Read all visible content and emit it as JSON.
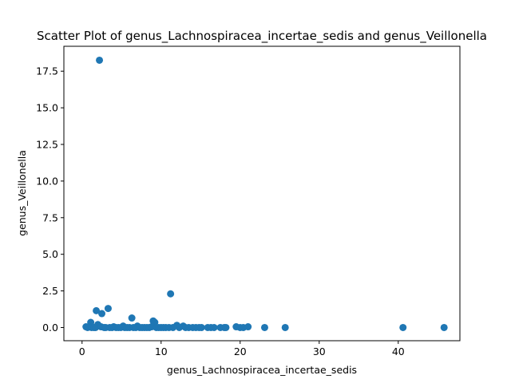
{
  "chart_data": {
    "type": "scatter",
    "title": "Scatter Plot of genus_Lachnospiracea_incertae_sedis and genus_Veillonella",
    "xlabel": "genus_Lachnospiracea_incertae_sedis",
    "ylabel": "genus_Veillonella",
    "xlim": [
      -2.3,
      47.8
    ],
    "ylim": [
      -0.9,
      19.2
    ],
    "xticks": [
      0,
      10,
      20,
      30,
      40
    ],
    "xtick_labels": [
      "0",
      "10",
      "20",
      "30",
      "40"
    ],
    "yticks": [
      0.0,
      2.5,
      5.0,
      7.5,
      10.0,
      12.5,
      15.0,
      17.5
    ],
    "ytick_labels": [
      "0.0",
      "2.5",
      "5.0",
      "7.5",
      "10.0",
      "12.5",
      "15.0",
      "17.5"
    ],
    "grid": false,
    "legend": false,
    "marker_color": "#1f77b4",
    "points": [
      [
        2.2,
        18.25
      ],
      [
        11.2,
        2.3
      ],
      [
        3.3,
        1.3
      ],
      [
        1.8,
        1.15
      ],
      [
        2.5,
        0.95
      ],
      [
        6.3,
        0.65
      ],
      [
        9.0,
        0.45
      ],
      [
        9.2,
        0.35
      ],
      [
        1.1,
        0.35
      ],
      [
        2.0,
        0.2
      ],
      [
        5.2,
        0.1
      ],
      [
        7.0,
        0.1
      ],
      [
        12.0,
        0.15
      ],
      [
        12.8,
        0.1
      ],
      [
        0.5,
        0.05
      ],
      [
        0.7,
        0.0
      ],
      [
        0.9,
        0.05
      ],
      [
        1.2,
        0.0
      ],
      [
        1.5,
        0.0
      ],
      [
        1.7,
        0.0
      ],
      [
        2.4,
        0.05
      ],
      [
        2.8,
        0.0
      ],
      [
        3.0,
        0.0
      ],
      [
        3.5,
        0.0
      ],
      [
        3.8,
        0.0
      ],
      [
        4.0,
        0.05
      ],
      [
        4.3,
        0.0
      ],
      [
        4.6,
        0.0
      ],
      [
        4.9,
        0.0
      ],
      [
        5.4,
        0.0
      ],
      [
        5.7,
        0.0
      ],
      [
        6.0,
        0.0
      ],
      [
        6.5,
        0.0
      ],
      [
        6.8,
        0.0
      ],
      [
        7.3,
        0.0
      ],
      [
        7.6,
        0.0
      ],
      [
        7.9,
        0.0
      ],
      [
        8.2,
        0.0
      ],
      [
        8.5,
        0.0
      ],
      [
        8.8,
        0.05
      ],
      [
        9.4,
        0.0
      ],
      [
        9.7,
        0.0
      ],
      [
        10.0,
        0.0
      ],
      [
        10.3,
        0.0
      ],
      [
        10.6,
        0.0
      ],
      [
        11.0,
        0.0
      ],
      [
        11.5,
        0.0
      ],
      [
        12.3,
        0.0
      ],
      [
        13.1,
        0.0
      ],
      [
        13.5,
        0.0
      ],
      [
        14.0,
        0.0
      ],
      [
        14.4,
        0.0
      ],
      [
        14.8,
        0.0
      ],
      [
        15.1,
        0.0
      ],
      [
        15.9,
        0.0
      ],
      [
        16.3,
        0.0
      ],
      [
        16.7,
        0.0
      ],
      [
        17.5,
        0.0
      ],
      [
        18.0,
        0.0
      ],
      [
        18.2,
        0.0
      ],
      [
        19.5,
        0.05
      ],
      [
        20.0,
        0.0
      ],
      [
        20.4,
        0.0
      ],
      [
        21.0,
        0.05
      ],
      [
        23.1,
        0.0
      ],
      [
        25.7,
        0.0
      ],
      [
        40.6,
        0.0
      ],
      [
        45.8,
        0.0
      ]
    ]
  }
}
